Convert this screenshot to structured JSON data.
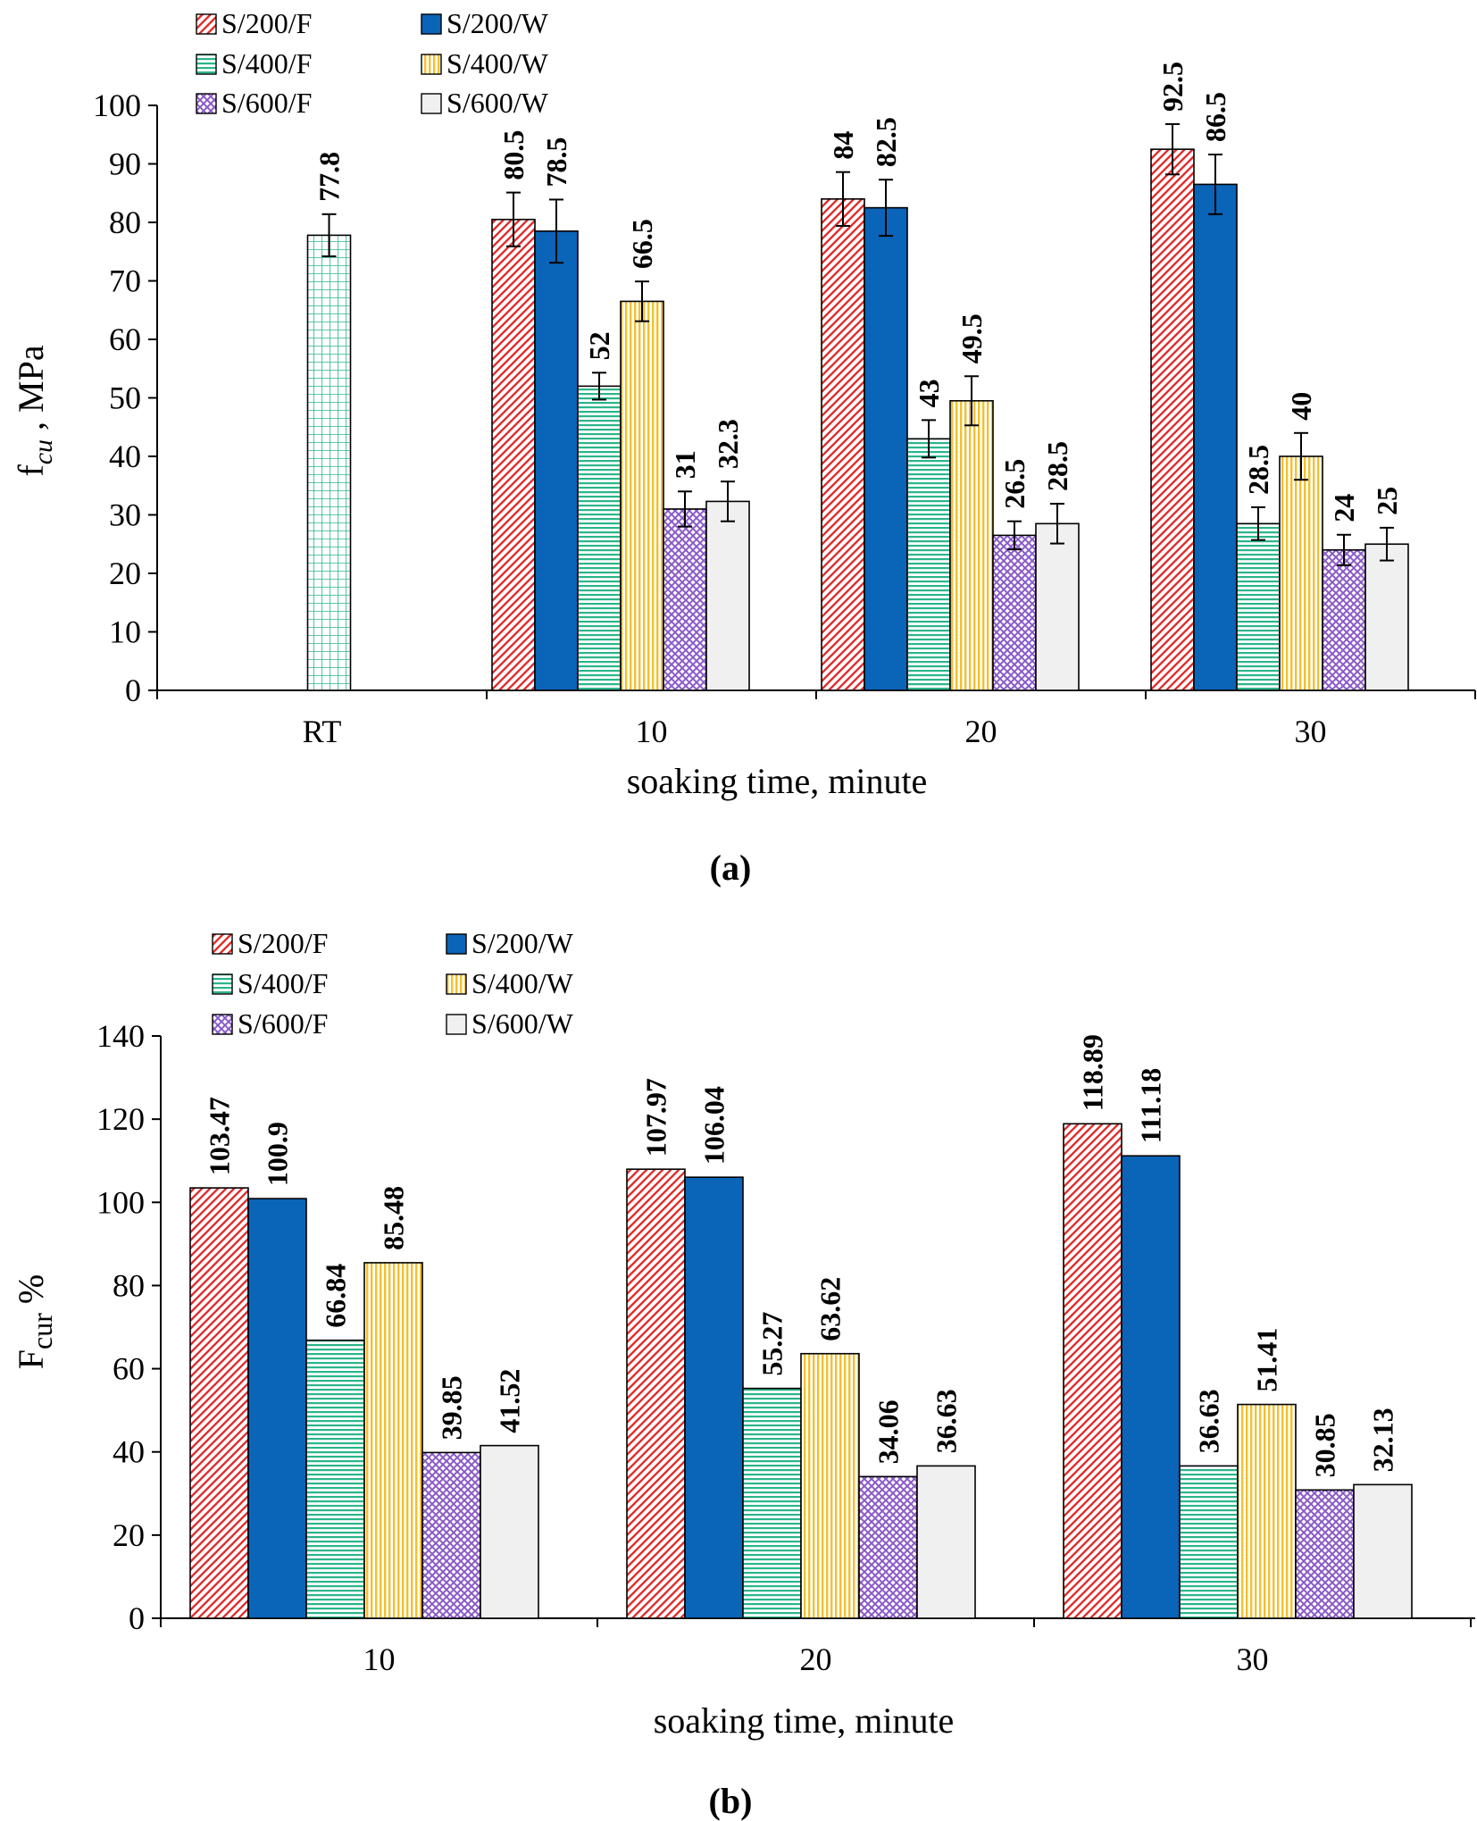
{
  "chart_data": [
    {
      "type": "bar",
      "panel_label": "(a)",
      "ylabel_main": "f",
      "ylabel_sub": "cu",
      "ylabel_rest": " , MPa",
      "xlabel": "soaking time, minute",
      "ylim": [
        0,
        100
      ],
      "yticks": [
        "0",
        "10",
        "20",
        "30",
        "40",
        "50",
        "60",
        "70",
        "80",
        "90",
        "100"
      ],
      "legend_position": "top-left",
      "categories": [
        "RT",
        "10",
        "20",
        "30"
      ],
      "reference": {
        "name": "RT",
        "category": "RT",
        "value": 77.8,
        "label": "77.8",
        "error": 3.6,
        "color": "#2bb58a"
      },
      "series": [
        {
          "name": "S/200/F",
          "color": "#e03030",
          "values": [
            null,
            80.5,
            84,
            92.5
          ],
          "labels": [
            "",
            "80.5",
            "84",
            "92.5"
          ],
          "errors": [
            null,
            4.6,
            4.6,
            4.3
          ]
        },
        {
          "name": "S/200/W",
          "color": "#0a64b8",
          "values": [
            null,
            78.5,
            82.5,
            86.5
          ],
          "labels": [
            "",
            "78.5",
            "82.5",
            "86.5"
          ],
          "errors": [
            null,
            5.4,
            4.8,
            5.1
          ]
        },
        {
          "name": "S/400/F",
          "color": "#2bb58a",
          "values": [
            null,
            52,
            43,
            28.5
          ],
          "labels": [
            "",
            "52",
            "43",
            "28.5"
          ],
          "errors": [
            null,
            2.3,
            3.2,
            2.8
          ]
        },
        {
          "name": "S/400/W",
          "color": "#f2c030",
          "values": [
            null,
            66.5,
            49.5,
            40
          ],
          "labels": [
            "",
            "66.5",
            "49.5",
            "40"
          ],
          "errors": [
            null,
            3.4,
            4.2,
            4.0
          ]
        },
        {
          "name": "S/600/F",
          "color": "#8a5ac8",
          "values": [
            null,
            31,
            26.5,
            24
          ],
          "labels": [
            "",
            "31",
            "26.5",
            "24"
          ],
          "errors": [
            null,
            3.0,
            2.4,
            2.6
          ]
        },
        {
          "name": "S/600/W",
          "color": "#f0f0f0",
          "values": [
            null,
            32.3,
            28.5,
            25
          ],
          "labels": [
            "",
            "32.3",
            "28.5",
            "25"
          ],
          "errors": [
            null,
            3.4,
            3.4,
            2.8
          ]
        }
      ]
    },
    {
      "type": "bar",
      "panel_label": "(b)",
      "ylabel_main": "F",
      "ylabel_sub": "cur",
      "ylabel_rest": " %",
      "xlabel": "soaking time, minute",
      "ylim": [
        0,
        140
      ],
      "yticks": [
        "0",
        "20",
        "40",
        "60",
        "80",
        "100",
        "120",
        "140"
      ],
      "legend_position": "top-left",
      "categories": [
        "10",
        "20",
        "30"
      ],
      "series": [
        {
          "name": "S/200/F",
          "color": "#e03030",
          "values": [
            103.47,
            107.97,
            118.89
          ],
          "labels": [
            "103.47",
            "107.97",
            "118.89"
          ]
        },
        {
          "name": "S/200/W",
          "color": "#0a64b8",
          "values": [
            100.9,
            106.04,
            111.18
          ],
          "labels": [
            "100.9",
            "106.04",
            "111.18"
          ]
        },
        {
          "name": "S/400/F",
          "color": "#2bb58a",
          "values": [
            66.84,
            55.27,
            36.63
          ],
          "labels": [
            "66.84",
            "55.27",
            "36.63"
          ]
        },
        {
          "name": "S/400/W",
          "color": "#f2c030",
          "values": [
            85.48,
            63.62,
            51.41
          ],
          "labels": [
            "85.48",
            "63.62",
            "51.41"
          ]
        },
        {
          "name": "S/600/F",
          "color": "#8a5ac8",
          "values": [
            39.85,
            34.06,
            30.85
          ],
          "labels": [
            "39.85",
            "34.06",
            "30.85"
          ]
        },
        {
          "name": "S/600/W",
          "color": "#f0f0f0",
          "values": [
            41.52,
            36.63,
            32.13
          ],
          "labels": [
            "41.52",
            "36.63",
            "32.13"
          ]
        }
      ]
    }
  ]
}
